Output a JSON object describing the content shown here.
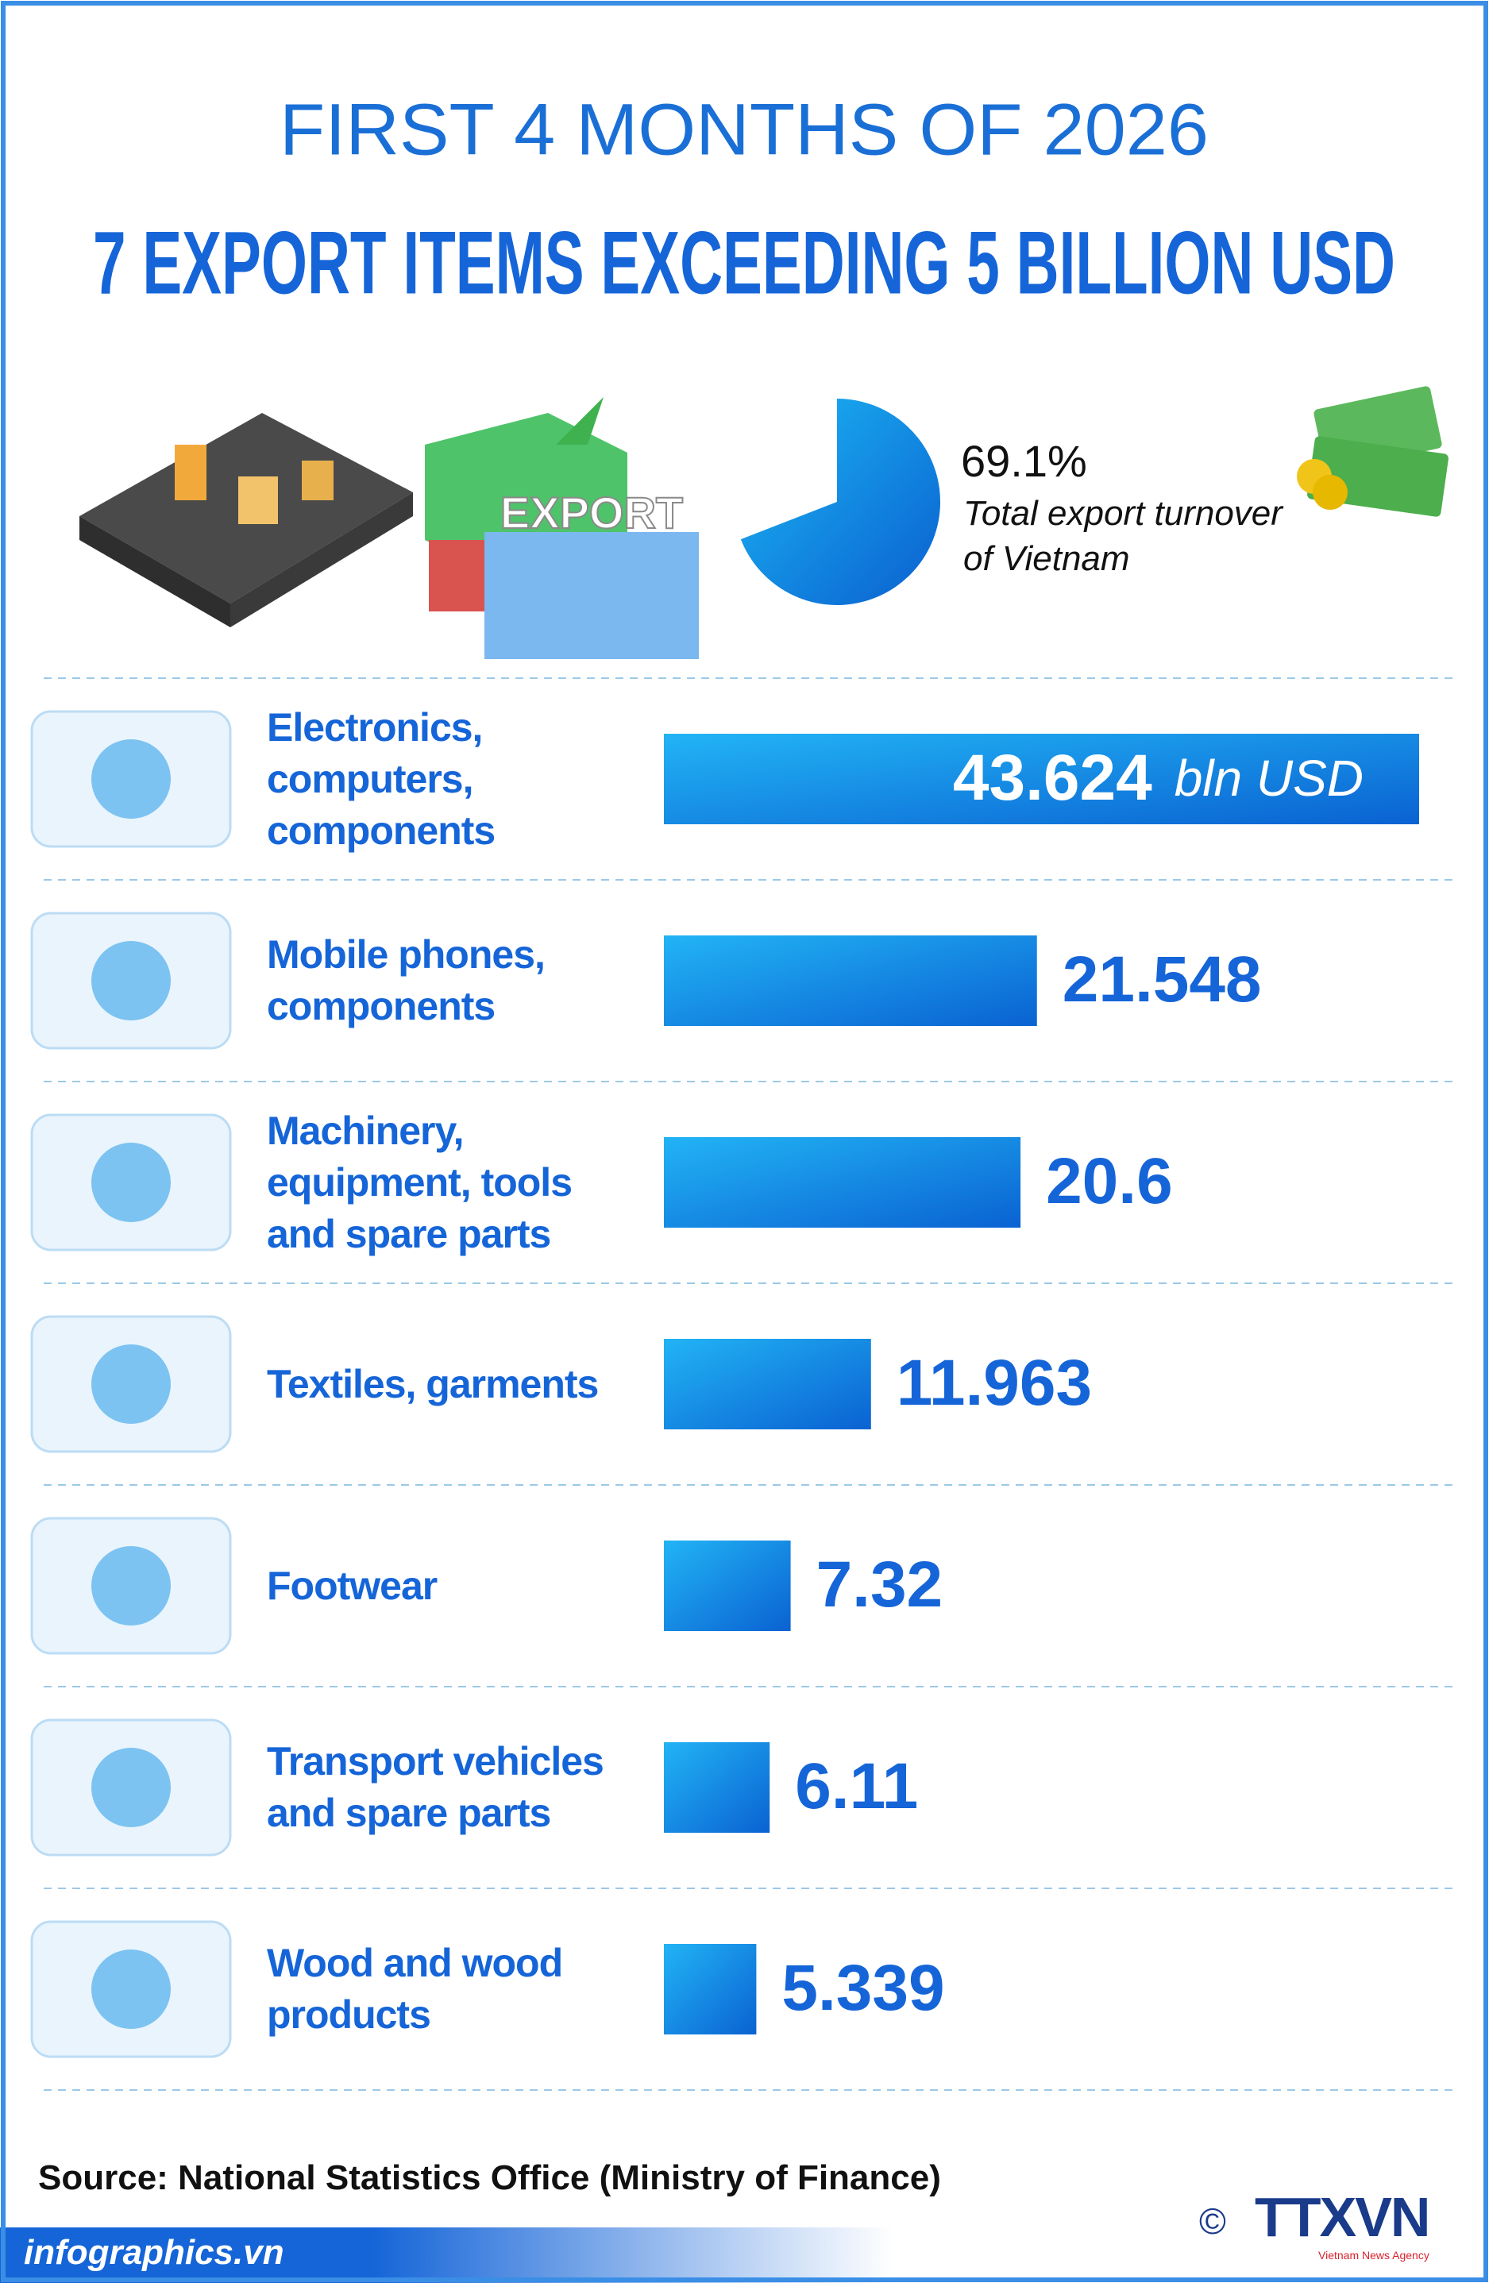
{
  "header": {
    "title": "FIRST 4 MONTHS OF 2026",
    "subtitle": "7 EXPORT ITEMS EXCEEDING 5 BILLION USD"
  },
  "illustration_label": "EXPORT",
  "chart_data": [
    {
      "type": "bar",
      "orientation": "horizontal",
      "color": "#0d7fe0",
      "unit": "bln USD",
      "categories": [
        "Electronics, computers, components",
        "Mobile phones, components",
        "Machinery, equipment, tools and spare parts",
        "Textiles, garments",
        "Footwear",
        "Transport vehicles and spare parts",
        "Wood and wood products"
      ],
      "values": [
        43.624,
        21.548,
        20.6,
        11.963,
        7.32,
        6.11,
        5.339
      ],
      "xlim": [
        0,
        45
      ]
    },
    {
      "type": "pie",
      "color": "#0d8ae6",
      "values": [
        69.1
      ],
      "value_labels": [
        "69.1%"
      ],
      "caption": "Total export turnover of Vietnam"
    }
  ],
  "source": "Source: National Statistics Office (Ministry of Finance)",
  "footer": "infographics.vn",
  "logo": "TTXVN",
  "logo_sub": "Vietnam News Agency"
}
